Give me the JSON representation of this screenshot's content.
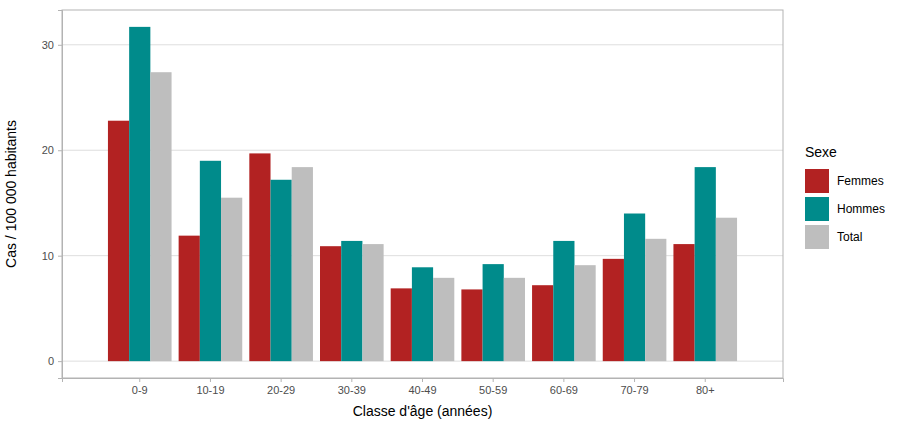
{
  "chart_data": {
    "type": "bar",
    "x_label": "Classe d'âge (années)",
    "y_label": "Cas / 100 000 habitants",
    "legend_title": "Sexe",
    "legend": "right",
    "grid": true,
    "categories": [
      "0-9",
      "10-19",
      "20-29",
      "30-39",
      "40-49",
      "50-59",
      "60-69",
      "70-79",
      "80+"
    ],
    "series": [
      {
        "name": "Femmes",
        "color": "#B22222",
        "values": [
          22.8,
          11.9,
          19.7,
          10.9,
          6.9,
          6.8,
          7.2,
          9.7,
          11.1
        ]
      },
      {
        "name": "Hommes",
        "color": "#008B8B",
        "values": [
          31.7,
          19.0,
          17.2,
          11.4,
          8.9,
          9.2,
          11.4,
          14.0,
          18.4
        ]
      },
      {
        "name": "Total",
        "color": "#BEBEBE",
        "values": [
          27.4,
          15.5,
          18.4,
          11.1,
          7.9,
          7.9,
          9.1,
          11.6,
          13.6
        ]
      }
    ],
    "ylim": [
      -1.6,
      33.3
    ],
    "yticks": [
      0,
      10,
      20,
      30
    ]
  }
}
